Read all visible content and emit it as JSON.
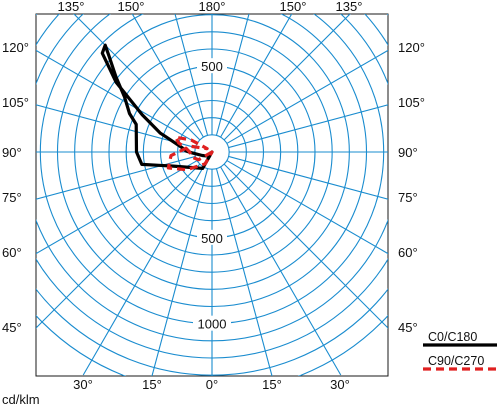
{
  "chart_data": {
    "type": "polar",
    "title": "",
    "unit_label": "cd/klm",
    "radial_scale_max": 1200,
    "radial_ticks": [
      {
        "value": 500,
        "label": "500",
        "side": "top"
      },
      {
        "value": 500,
        "label": "500",
        "side": "bottom"
      },
      {
        "value": 1000,
        "label": "1000",
        "side": "bottom"
      }
    ],
    "angle_labels": {
      "top": [
        "135°",
        "150°",
        "180°",
        "150°",
        "135°"
      ],
      "left": [
        "120°",
        "105°",
        "90°",
        "75°",
        "60°",
        "45°"
      ],
      "right": [
        "120°",
        "105°",
        "90°",
        "75°",
        "60°",
        "45°"
      ],
      "bottom": [
        "30°",
        "15°",
        "0°",
        "15°",
        "30°"
      ]
    },
    "legend_position": "bottom-right",
    "series": [
      {
        "name": "C0/C180",
        "color": "#000000",
        "style": "solid",
        "points": [
          {
            "angle": 180,
            "value": 0
          },
          {
            "angle": 150,
            "value": 110
          },
          {
            "angle": 110,
            "value": 240
          },
          {
            "angle": 104,
            "value": 320
          },
          {
            "angle": 100,
            "value": 415
          },
          {
            "angle": 90,
            "value": 440
          },
          {
            "angle": 70,
            "value": 470
          },
          {
            "angle": 65,
            "value": 530
          },
          {
            "angle": 58,
            "value": 600
          },
          {
            "angle": 52,
            "value": 710
          },
          {
            "angle": 47,
            "value": 820
          },
          {
            "angle": 45,
            "value": 880
          },
          {
            "angle": 48,
            "value": 860
          },
          {
            "angle": 54,
            "value": 690
          },
          {
            "angle": 62,
            "value": 460
          },
          {
            "angle": 70,
            "value": 320
          },
          {
            "angle": 72,
            "value": 280
          },
          {
            "angle": 82,
            "value": 175
          },
          {
            "angle": 88,
            "value": 150
          },
          {
            "angle": 92,
            "value": 120
          },
          {
            "angle": 110,
            "value": 60
          },
          {
            "angle": 145,
            "value": 30
          },
          {
            "angle": 180,
            "value": 0
          }
        ]
      },
      {
        "name": "C90/C270",
        "color": "#e02020",
        "style": "dashed",
        "points": [
          {
            "angle": 180,
            "value": 0
          },
          {
            "angle": 120,
            "value": 90
          },
          {
            "angle": 105,
            "value": 120
          },
          {
            "angle": 90,
            "value": 130
          },
          {
            "angle": 80,
            "value": 160
          },
          {
            "angle": 75,
            "value": 200
          },
          {
            "angle": 68,
            "value": 230
          },
          {
            "angle": 60,
            "value": 140
          },
          {
            "angle": 55,
            "value": 35
          },
          {
            "angle": 60,
            "value": 40
          },
          {
            "angle": 75,
            "value": 130
          },
          {
            "angle": 95,
            "value": 240
          },
          {
            "angle": 110,
            "value": 270
          },
          {
            "angle": 125,
            "value": 180
          },
          {
            "angle": 150,
            "value": 80
          },
          {
            "angle": 180,
            "value": 0
          }
        ]
      }
    ]
  }
}
